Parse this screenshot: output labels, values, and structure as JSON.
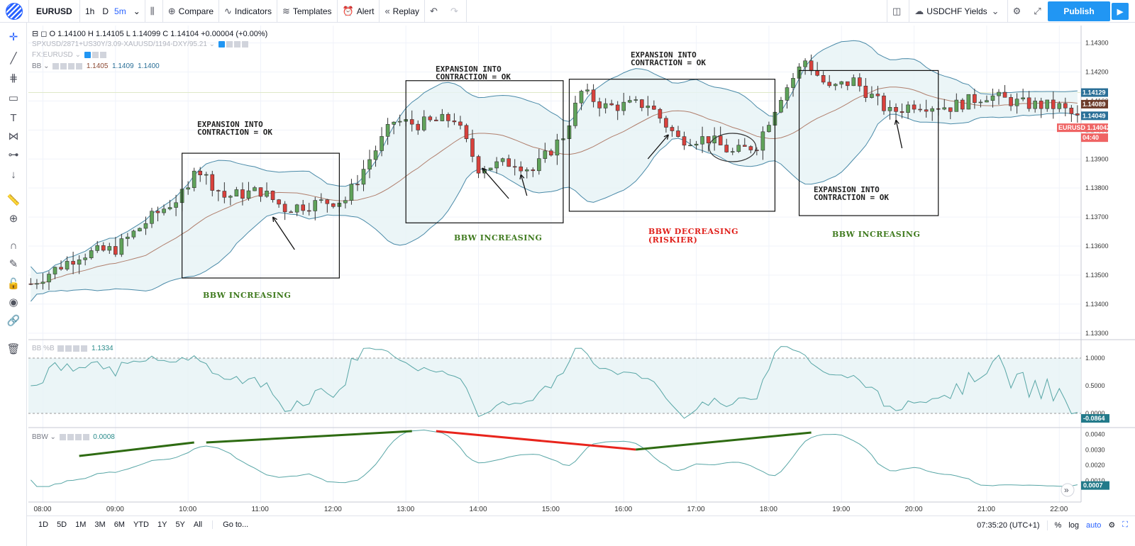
{
  "toolbar": {
    "symbol": "EURUSD",
    "intervals": [
      "1h",
      "D",
      "5m"
    ],
    "active_interval": "5m",
    "compare": "Compare",
    "indicators": "Indicators",
    "templates": "Templates",
    "alert": "Alert",
    "replay": "Replay",
    "layout_name": "USDCHF Yields",
    "publish": "Publish"
  },
  "legend": {
    "ohlc": "O 1.14100  H 1.14105  L 1.14099  C 1.14104  +0.00004 (+0.00%)",
    "spread": "SPXUSD/2871+US30Y/3.09-XAUUSD/1194-DXY/95.21",
    "fx": "FX:EURUSD",
    "bb_name": "BB",
    "bb_vals": [
      "1.1405",
      "1.1409",
      "1.1400"
    ],
    "bbpct_name": "BB %B",
    "bbpct_val": "1.1334",
    "bbw_name": "BBW",
    "bbw_val": "0.0008"
  },
  "price_axis": {
    "ticks": [
      "1.14300",
      "1.14200",
      "1.14100",
      "1.14000",
      "1.13900",
      "1.13800",
      "1.13700",
      "1.13600",
      "1.13500",
      "1.13400",
      "1.13300"
    ],
    "labels": [
      {
        "text": "1.14129",
        "color": "#2a6f97"
      },
      {
        "text": "1.14089",
        "color": "#6d3b2a"
      },
      {
        "text": "1.14049",
        "color": "#2a6f97"
      },
      {
        "text": "EURUSD  1.14042",
        "color": "#ef6464"
      },
      {
        "text": "04:40",
        "color": "#ef6464"
      }
    ]
  },
  "pctb_axis": {
    "ticks": [
      "1.0000",
      "0.5000",
      "0.0000"
    ],
    "label": "-0.0864"
  },
  "bbw_axis": {
    "ticks": [
      "0.0040",
      "0.0030",
      "0.0020",
      "0.0010"
    ],
    "label": "0.0007"
  },
  "time_axis": [
    "08:00",
    "09:00",
    "10:00",
    "11:00",
    "12:00",
    "13:00",
    "14:00",
    "15:00",
    "16:00",
    "17:00",
    "18:00",
    "19:00",
    "20:00",
    "21:00",
    "22:00"
  ],
  "annotations": [
    {
      "text": "EXPANSION INTO\nCONTRACTION = OK"
    },
    {
      "text": "EXPANSION INTO\nCONTRACTION = OK"
    },
    {
      "text": "EXPANSION INTO\nCONTRACTION = OK"
    },
    {
      "text": "EXPANSION INTO\nCONTRACTION = OK"
    }
  ],
  "notes": [
    {
      "text": "BBW INCREASING",
      "color": "green"
    },
    {
      "text": "BBW INCREASING",
      "color": "green"
    },
    {
      "text": "BBW DECREASING\n(RISKIER)",
      "color": "red"
    },
    {
      "text": "BBW INCREASING",
      "color": "green"
    }
  ],
  "bottom": {
    "ranges": [
      "1D",
      "5D",
      "1M",
      "3M",
      "6M",
      "YTD",
      "1Y",
      "5Y",
      "All"
    ],
    "goto": "Go to...",
    "clock": "07:35:20 (UTC+1)",
    "pct": "%",
    "log": "log",
    "auto": "auto"
  },
  "chart_data": {
    "type": "candlestick",
    "x_start": "07:50",
    "x_end": "22:15",
    "interval": "5m",
    "ylim": [
      1.1328,
      1.1436
    ],
    "bars": "approx. 170 five-minute candles; close path sampled below",
    "close_path": [
      {
        "t": "07:50",
        "v": 1.1347
      },
      {
        "t": "08:30",
        "v": 1.1357
      },
      {
        "t": "09:00",
        "v": 1.1359
      },
      {
        "t": "09:30",
        "v": 1.137
      },
      {
        "t": "10:00",
        "v": 1.1379
      },
      {
        "t": "10:05",
        "v": 1.1388
      },
      {
        "t": "10:30",
        "v": 1.1377
      },
      {
        "t": "11:00",
        "v": 1.1379
      },
      {
        "t": "11:20",
        "v": 1.1373
      },
      {
        "t": "11:50",
        "v": 1.1375
      },
      {
        "t": "12:10",
        "v": 1.1376
      },
      {
        "t": "12:30",
        "v": 1.139
      },
      {
        "t": "12:50",
        "v": 1.1403
      },
      {
        "t": "13:10",
        "v": 1.1402
      },
      {
        "t": "13:40",
        "v": 1.1404
      },
      {
        "t": "14:00",
        "v": 1.1387
      },
      {
        "t": "14:30",
        "v": 1.1389
      },
      {
        "t": "14:45",
        "v": 1.1386
      },
      {
        "t": "15:10",
        "v": 1.1398
      },
      {
        "t": "15:25",
        "v": 1.1413
      },
      {
        "t": "15:45",
        "v": 1.1408
      },
      {
        "t": "16:20",
        "v": 1.1409
      },
      {
        "t": "16:45",
        "v": 1.1397
      },
      {
        "t": "17:10",
        "v": 1.1397
      },
      {
        "t": "17:30",
        "v": 1.1392
      },
      {
        "t": "17:50",
        "v": 1.1395
      },
      {
        "t": "18:10",
        "v": 1.1412
      },
      {
        "t": "18:30",
        "v": 1.1424
      },
      {
        "t": "18:50",
        "v": 1.1414
      },
      {
        "t": "19:10",
        "v": 1.1417
      },
      {
        "t": "19:40",
        "v": 1.1406
      },
      {
        "t": "20:00",
        "v": 1.1409
      },
      {
        "t": "20:30",
        "v": 1.1408
      },
      {
        "t": "21:00",
        "v": 1.1412
      },
      {
        "t": "21:30",
        "v": 1.1409
      },
      {
        "t": "22:00",
        "v": 1.1408
      },
      {
        "t": "22:15",
        "v": 1.1404
      }
    ]
  }
}
